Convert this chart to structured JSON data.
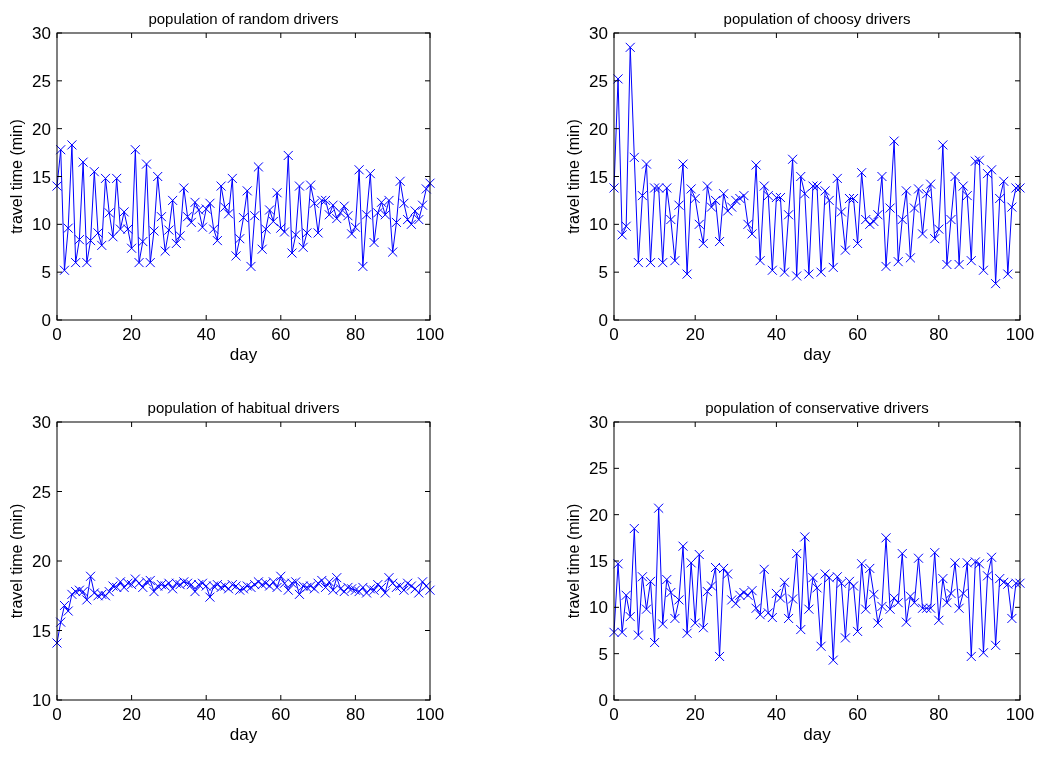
{
  "chart_data": [
    {
      "type": "line",
      "title": "population of random drivers",
      "xlabel": "day",
      "ylabel": "travel time (min)",
      "xlim": [
        0,
        100
      ],
      "xticks": [
        0,
        20,
        40,
        60,
        80,
        100
      ],
      "ylim": [
        0,
        30
      ],
      "yticks": [
        0,
        5,
        10,
        15,
        20,
        25,
        30
      ],
      "marker": "cross",
      "grid": false,
      "x": [
        0,
        1,
        2,
        3,
        4,
        5,
        6,
        7,
        8,
        9,
        10,
        11,
        12,
        13,
        14,
        15,
        16,
        17,
        18,
        19,
        20,
        21,
        22,
        23,
        24,
        25,
        26,
        27,
        28,
        29,
        30,
        31,
        32,
        33,
        34,
        35,
        36,
        37,
        38,
        39,
        40,
        41,
        42,
        43,
        44,
        45,
        46,
        47,
        48,
        49,
        50,
        51,
        52,
        53,
        54,
        55,
        56,
        57,
        58,
        59,
        60,
        61,
        62,
        63,
        64,
        65,
        66,
        67,
        68,
        69,
        70,
        71,
        72,
        73,
        74,
        75,
        76,
        77,
        78,
        79,
        80,
        81,
        82,
        83,
        84,
        85,
        86,
        87,
        88,
        89,
        90,
        91,
        92,
        93,
        94,
        95,
        96,
        97,
        98,
        99,
        100
      ],
      "series": [
        {
          "color": "#0000ff",
          "values": [
            14,
            17.8,
            5.2,
            9.6,
            18.3,
            6,
            8.4,
            16.5,
            6,
            8.3,
            15.5,
            9.1,
            7.8,
            14.8,
            11.2,
            8.7,
            14.8,
            9.5,
            11.3,
            9.5,
            7.5,
            17.8,
            6,
            8.2,
            16.3,
            6,
            9.3,
            15,
            10.8,
            7.2,
            9.4,
            12.5,
            8,
            8.8,
            13.8,
            10.8,
            10.2,
            12.3,
            11.5,
            9.7,
            11.6,
            12.2,
            9.5,
            8.3,
            14,
            11.8,
            11.1,
            14.8,
            6.7,
            8.5,
            10.7,
            13.5,
            5.6,
            10.9,
            16,
            7.4,
            9.5,
            11.5,
            10.3,
            13.3,
            9.6,
            9.2,
            17.2,
            7,
            8.9,
            14,
            7.6,
            9.1,
            14.1,
            12.2,
            9.1,
            12.5,
            12.5,
            11,
            12,
            10.6,
            11.2,
            11.9,
            10.9,
            9,
            9.7,
            15.7,
            5.6,
            11,
            15.3,
            8.1,
            11.2,
            12.3,
            11,
            12.5,
            7.1,
            10.2,
            14.5,
            12.2,
            10.5,
            10,
            11.4,
            10.5,
            12,
            13.7,
            14.3
          ]
        }
      ]
    },
    {
      "type": "line",
      "title": "population of choosy drivers",
      "xlabel": "day",
      "ylabel": "travel time (min)",
      "xlim": [
        0,
        100
      ],
      "xticks": [
        0,
        20,
        40,
        60,
        80,
        100
      ],
      "ylim": [
        0,
        30
      ],
      "yticks": [
        0,
        5,
        10,
        15,
        20,
        25,
        30
      ],
      "marker": "cross",
      "grid": false,
      "x": [
        0,
        1,
        2,
        3,
        4,
        5,
        6,
        7,
        8,
        9,
        10,
        11,
        12,
        13,
        14,
        15,
        16,
        17,
        18,
        19,
        20,
        21,
        22,
        23,
        24,
        25,
        26,
        27,
        28,
        29,
        30,
        31,
        32,
        33,
        34,
        35,
        36,
        37,
        38,
        39,
        40,
        41,
        42,
        43,
        44,
        45,
        46,
        47,
        48,
        49,
        50,
        51,
        52,
        53,
        54,
        55,
        56,
        57,
        58,
        59,
        60,
        61,
        62,
        63,
        64,
        65,
        66,
        67,
        68,
        69,
        70,
        71,
        72,
        73,
        74,
        75,
        76,
        77,
        78,
        79,
        80,
        81,
        82,
        83,
        84,
        85,
        86,
        87,
        88,
        89,
        90,
        91,
        92,
        93,
        94,
        95,
        96,
        97,
        98,
        99,
        100
      ],
      "series": [
        {
          "color": "#0000ff",
          "values": [
            13.8,
            25.2,
            8.9,
            9.8,
            28.5,
            17,
            6,
            13,
            16.3,
            6,
            13.8,
            13.8,
            6,
            13.8,
            10.5,
            6.2,
            12,
            16.3,
            4.8,
            13.7,
            12.7,
            10,
            8,
            14,
            11.8,
            12.5,
            8.2,
            13.2,
            11.4,
            11.8,
            12.5,
            12.7,
            13,
            10,
            9,
            16.2,
            6.2,
            14,
            13,
            5.2,
            12.8,
            12.8,
            5,
            11,
            16.8,
            4.6,
            15,
            13.2,
            4.8,
            14,
            14,
            5,
            13.5,
            12.5,
            5.5,
            14.8,
            11.3,
            7.3,
            12.7,
            12.7,
            8,
            15.4,
            10.5,
            10,
            10.3,
            11,
            15,
            5.6,
            11.7,
            18.7,
            6.1,
            10.5,
            13.5,
            6.5,
            11.7,
            13.7,
            9,
            13.2,
            14.2,
            8.5,
            9.5,
            18.3,
            5.8,
            10.5,
            15,
            5.8,
            14,
            13,
            6.2,
            16.6,
            16.7,
            5.2,
            15.3,
            15.7,
            3.8,
            12.7,
            14.5,
            4.8,
            11.8,
            13.8,
            13.8
          ]
        }
      ]
    },
    {
      "type": "line",
      "title": "population of habitual drivers",
      "xlabel": "day",
      "ylabel": "travel time (min)",
      "xlim": [
        0,
        100
      ],
      "xticks": [
        0,
        20,
        40,
        60,
        80,
        100
      ],
      "ylim": [
        10,
        30
      ],
      "yticks": [
        10,
        15,
        20,
        25,
        30
      ],
      "marker": "cross",
      "grid": false,
      "x": [
        0,
        1,
        2,
        3,
        4,
        5,
        6,
        7,
        8,
        9,
        10,
        11,
        12,
        13,
        14,
        15,
        16,
        17,
        18,
        19,
        20,
        21,
        22,
        23,
        24,
        25,
        26,
        27,
        28,
        29,
        30,
        31,
        32,
        33,
        34,
        35,
        36,
        37,
        38,
        39,
        40,
        41,
        42,
        43,
        44,
        45,
        46,
        47,
        48,
        49,
        50,
        51,
        52,
        53,
        54,
        55,
        56,
        57,
        58,
        59,
        60,
        61,
        62,
        63,
        64,
        65,
        66,
        67,
        68,
        69,
        70,
        71,
        72,
        73,
        74,
        75,
        76,
        77,
        78,
        79,
        80,
        81,
        82,
        83,
        84,
        85,
        86,
        87,
        88,
        89,
        90,
        91,
        92,
        93,
        94,
        95,
        96,
        97,
        98,
        99,
        100
      ],
      "series": [
        {
          "color": "#0000ff",
          "values": [
            14.1,
            15.6,
            16.8,
            16.4,
            17.6,
            17.8,
            17.9,
            17.8,
            17.2,
            18.9,
            17.7,
            17.5,
            17.6,
            17.5,
            17.8,
            18.2,
            18.1,
            18.5,
            18.1,
            18.4,
            18.3,
            18.7,
            18.4,
            18.1,
            18.5,
            18.6,
            17.8,
            18.2,
            18.3,
            18.2,
            18.4,
            18,
            18.4,
            18.3,
            18.5,
            18.4,
            18.3,
            17.8,
            18.3,
            18.4,
            18.2,
            17.4,
            18.2,
            18.3,
            18.1,
            18.2,
            18,
            18.3,
            18.2,
            17.9,
            18,
            18.2,
            18.1,
            18.3,
            18.5,
            18.3,
            18.4,
            18.2,
            18.5,
            18.1,
            18.9,
            18.4,
            17.9,
            18.4,
            18.5,
            17.6,
            18.2,
            18.1,
            18.2,
            18,
            18.4,
            18.6,
            18.1,
            18.5,
            17.9,
            18.8,
            18,
            17.8,
            18.1,
            18,
            17.9,
            17.8,
            18.1,
            17.7,
            18,
            17.9,
            18.3,
            18.1,
            17.7,
            18.8,
            18.4,
            18.1,
            18.2,
            17.9,
            18.4,
            18.2,
            18,
            17.7,
            18.5,
            18.2,
            17.9
          ]
        }
      ]
    },
    {
      "type": "line",
      "title": "population of conservative drivers",
      "xlabel": "day",
      "ylabel": "travel time (min)",
      "xlim": [
        0,
        100
      ],
      "xticks": [
        0,
        20,
        40,
        60,
        80,
        100
      ],
      "ylim": [
        0,
        30
      ],
      "yticks": [
        0,
        5,
        10,
        15,
        20,
        25,
        30
      ],
      "marker": "cross",
      "grid": false,
      "x": [
        0,
        1,
        2,
        3,
        4,
        5,
        6,
        7,
        8,
        9,
        10,
        11,
        12,
        13,
        14,
        15,
        16,
        17,
        18,
        19,
        20,
        21,
        22,
        23,
        24,
        25,
        26,
        27,
        28,
        29,
        30,
        31,
        32,
        33,
        34,
        35,
        36,
        37,
        38,
        39,
        40,
        41,
        42,
        43,
        44,
        45,
        46,
        47,
        48,
        49,
        50,
        51,
        52,
        53,
        54,
        55,
        56,
        57,
        58,
        59,
        60,
        61,
        62,
        63,
        64,
        65,
        66,
        67,
        68,
        69,
        70,
        71,
        72,
        73,
        74,
        75,
        76,
        77,
        78,
        79,
        80,
        81,
        82,
        83,
        84,
        85,
        86,
        87,
        88,
        89,
        90,
        91,
        92,
        93,
        94,
        95,
        96,
        97,
        98,
        99,
        100
      ],
      "series": [
        {
          "color": "#0000ff",
          "values": [
            7.3,
            14.7,
            7.3,
            11.3,
            9,
            18.5,
            7,
            13.3,
            9.8,
            12.8,
            6.2,
            20.7,
            8.2,
            13,
            11.6,
            8.8,
            10.8,
            16.6,
            7.2,
            14.8,
            8.3,
            15.7,
            7.8,
            11.7,
            12.3,
            14.3,
            4.7,
            14.2,
            13.6,
            10.8,
            10.4,
            11.3,
            11.6,
            11.3,
            11.8,
            9.9,
            9.2,
            14.1,
            9.4,
            8.9,
            11.5,
            11,
            12.7,
            8.8,
            10.9,
            15.8,
            7.6,
            17.6,
            9.8,
            13.2,
            12.1,
            5.8,
            13.6,
            13.2,
            4.3,
            13.3,
            12.6,
            6.7,
            12.8,
            12.3,
            7.4,
            14.7,
            9.8,
            14.2,
            11.4,
            8.3,
            10.1,
            17.5,
            9.8,
            11,
            10.5,
            15.8,
            8.4,
            11.2,
            10.5,
            15.3,
            9.9,
            9.9,
            9.9,
            15.9,
            8.6,
            13.1,
            10.5,
            11.5,
            14.8,
            9.9,
            11.5,
            14.8,
            4.7,
            14.9,
            14.7,
            5.1,
            13.4,
            15.4,
            5.9,
            13.1,
            12.7,
            12.5,
            8.8,
            12.6,
            12.6
          ]
        }
      ]
    }
  ]
}
